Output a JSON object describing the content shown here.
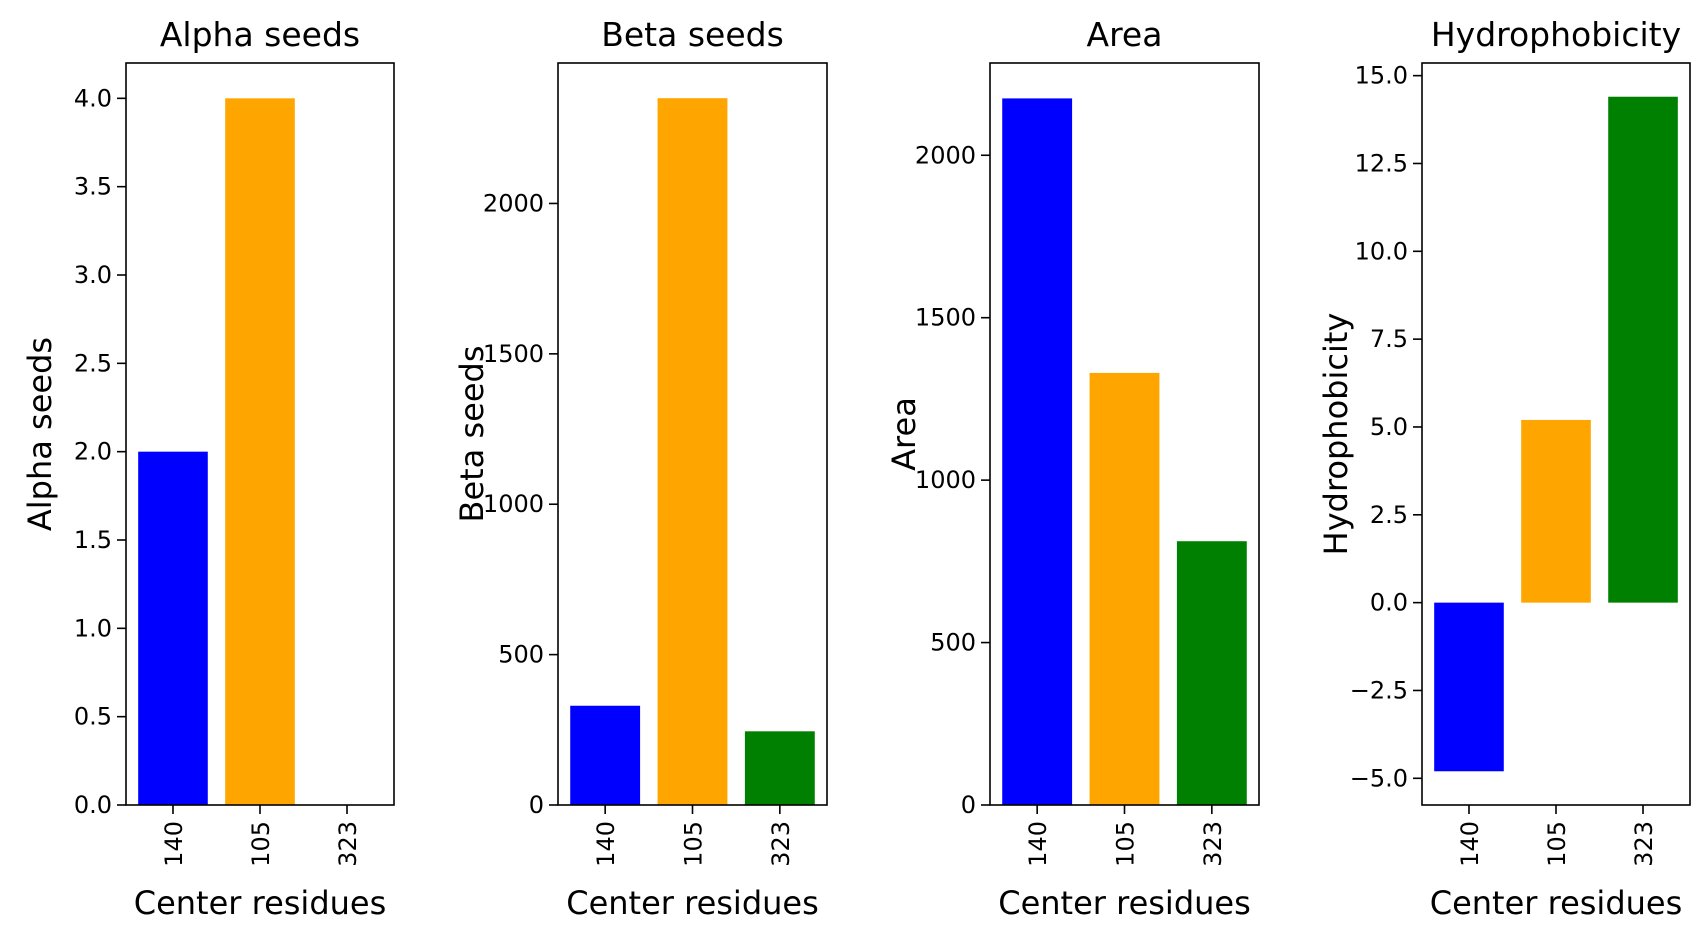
{
  "chart_data": [
    {
      "type": "bar",
      "title": "Alpha seeds",
      "xlabel": "Center residues",
      "ylabel": "Alpha seeds",
      "categories": [
        "140",
        "105",
        "323"
      ],
      "values": [
        2,
        4,
        0
      ],
      "colors": [
        "#0000ff",
        "#ffa500",
        "#008000"
      ],
      "ylim": [
        0,
        4.2
      ],
      "yticks": [
        0,
        0.5,
        1.0,
        1.5,
        2.0,
        2.5,
        3.0,
        3.5,
        4.0
      ],
      "ytick_labels": [
        "0.0",
        "0.5",
        "1.0",
        "1.5",
        "2.0",
        "2.5",
        "3.0",
        "3.5",
        "4.0"
      ],
      "grid": false
    },
    {
      "type": "bar",
      "title": "Beta seeds",
      "xlabel": "Center residues",
      "ylabel": "Beta seeds",
      "categories": [
        "140",
        "105",
        "323"
      ],
      "values": [
        330,
        2350,
        245
      ],
      "colors": [
        "#0000ff",
        "#ffa500",
        "#008000"
      ],
      "ylim": [
        0,
        2467
      ],
      "yticks": [
        0,
        500,
        1000,
        1500,
        2000
      ],
      "ytick_labels": [
        "0",
        "500",
        "1000",
        "1500",
        "2000"
      ],
      "grid": false
    },
    {
      "type": "bar",
      "title": "Area",
      "xlabel": "Center residues",
      "ylabel": "Area",
      "categories": [
        "140",
        "105",
        "323"
      ],
      "values": [
        2175,
        1330,
        812
      ],
      "colors": [
        "#0000ff",
        "#ffa500",
        "#008000"
      ],
      "ylim": [
        0,
        2284
      ],
      "yticks": [
        0,
        500,
        1000,
        1500,
        2000
      ],
      "ytick_labels": [
        "0",
        "500",
        "1000",
        "1500",
        "2000"
      ],
      "grid": false
    },
    {
      "type": "bar",
      "title": "Hydrophobicity",
      "xlabel": "Center residues",
      "ylabel": "Hydrophobicity",
      "categories": [
        "140",
        "105",
        "323"
      ],
      "values": [
        -4.8,
        5.2,
        14.4
      ],
      "colors": [
        "#0000ff",
        "#ffa500",
        "#008000"
      ],
      "ylim": [
        -5.76,
        15.36
      ],
      "yticks": [
        -5.0,
        -2.5,
        0.0,
        2.5,
        5.0,
        7.5,
        10.0,
        12.5,
        15.0
      ],
      "ytick_labels": [
        "−5.0",
        "−2.5",
        "0.0",
        "2.5",
        "5.0",
        "7.5",
        "10.0",
        "12.5",
        "15.0"
      ],
      "grid": false
    }
  ]
}
